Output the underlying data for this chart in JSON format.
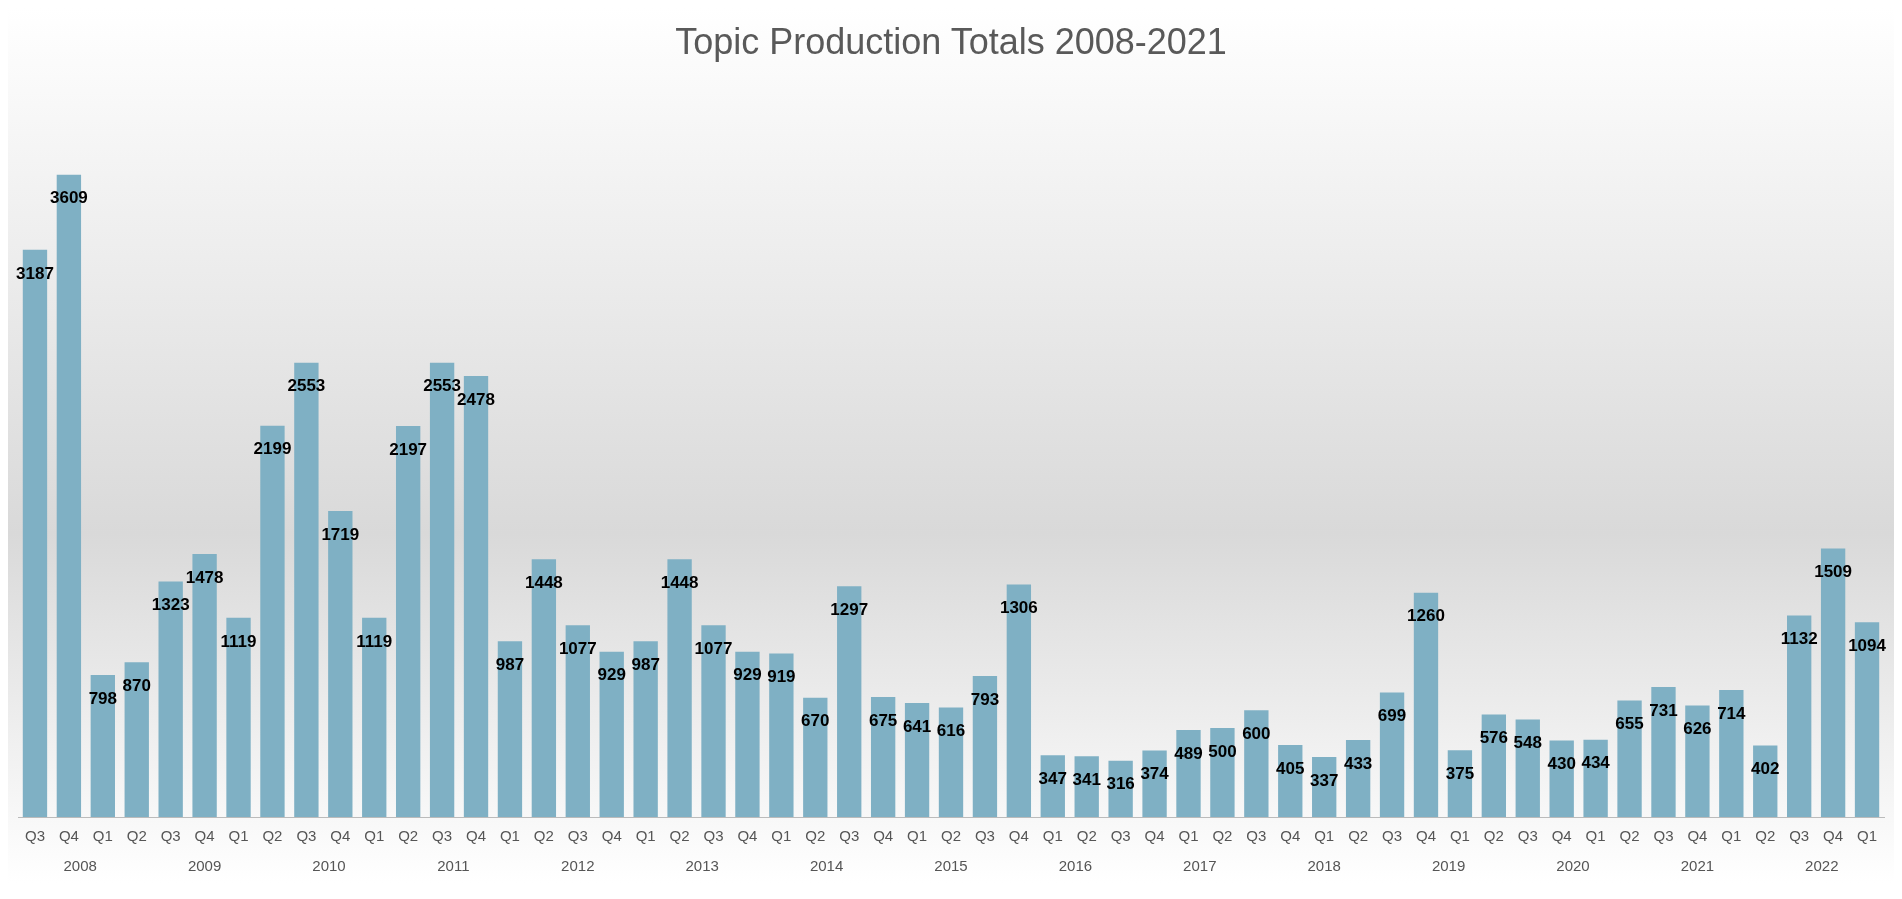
{
  "chart_data": {
    "type": "bar",
    "title": "Topic Production Totals 2008-2021",
    "categories": [
      "Q3",
      "Q4",
      "Q1",
      "Q2",
      "Q3",
      "Q4",
      "Q1",
      "Q2",
      "Q3",
      "Q4",
      "Q1",
      "Q2",
      "Q3",
      "Q4",
      "Q1",
      "Q2",
      "Q3",
      "Q4",
      "Q1",
      "Q2",
      "Q3",
      "Q4",
      "Q1",
      "Q2",
      "Q3",
      "Q4",
      "Q1",
      "Q2",
      "Q3",
      "Q4",
      "Q1",
      "Q2",
      "Q3",
      "Q4",
      "Q1",
      "Q2",
      "Q3",
      "Q4",
      "Q1",
      "Q2",
      "Q3",
      "Q4",
      "Q1",
      "Q2",
      "Q3",
      "Q4",
      "Q1",
      "Q2",
      "Q3",
      "Q4",
      "Q1",
      "Q2",
      "Q3",
      "Q4",
      "Q1"
    ],
    "values": [
      3187,
      3609,
      798,
      870,
      1323,
      1478,
      1119,
      2199,
      2553,
      1719,
      1119,
      2197,
      2553,
      2478,
      987,
      1448,
      1077,
      929,
      987,
      1448,
      1077,
      929,
      919,
      670,
      1297,
      675,
      641,
      616,
      793,
      1306,
      347,
      341,
      316,
      374,
      489,
      500,
      600,
      405,
      337,
      433,
      699,
      1260,
      375,
      576,
      548,
      430,
      434,
      655,
      731,
      626,
      714,
      402,
      1132,
      1509,
      1094
    ],
    "color": "#7fb0c4",
    "data_labels": true,
    "grid": false,
    "legend": false,
    "annotations": [
      "2008",
      "2009",
      "2010",
      "2011",
      "2012",
      "2013",
      "2014",
      "2015",
      "2016",
      "2017",
      "2018",
      "2019",
      "2020",
      "2021",
      "2022"
    ]
  }
}
